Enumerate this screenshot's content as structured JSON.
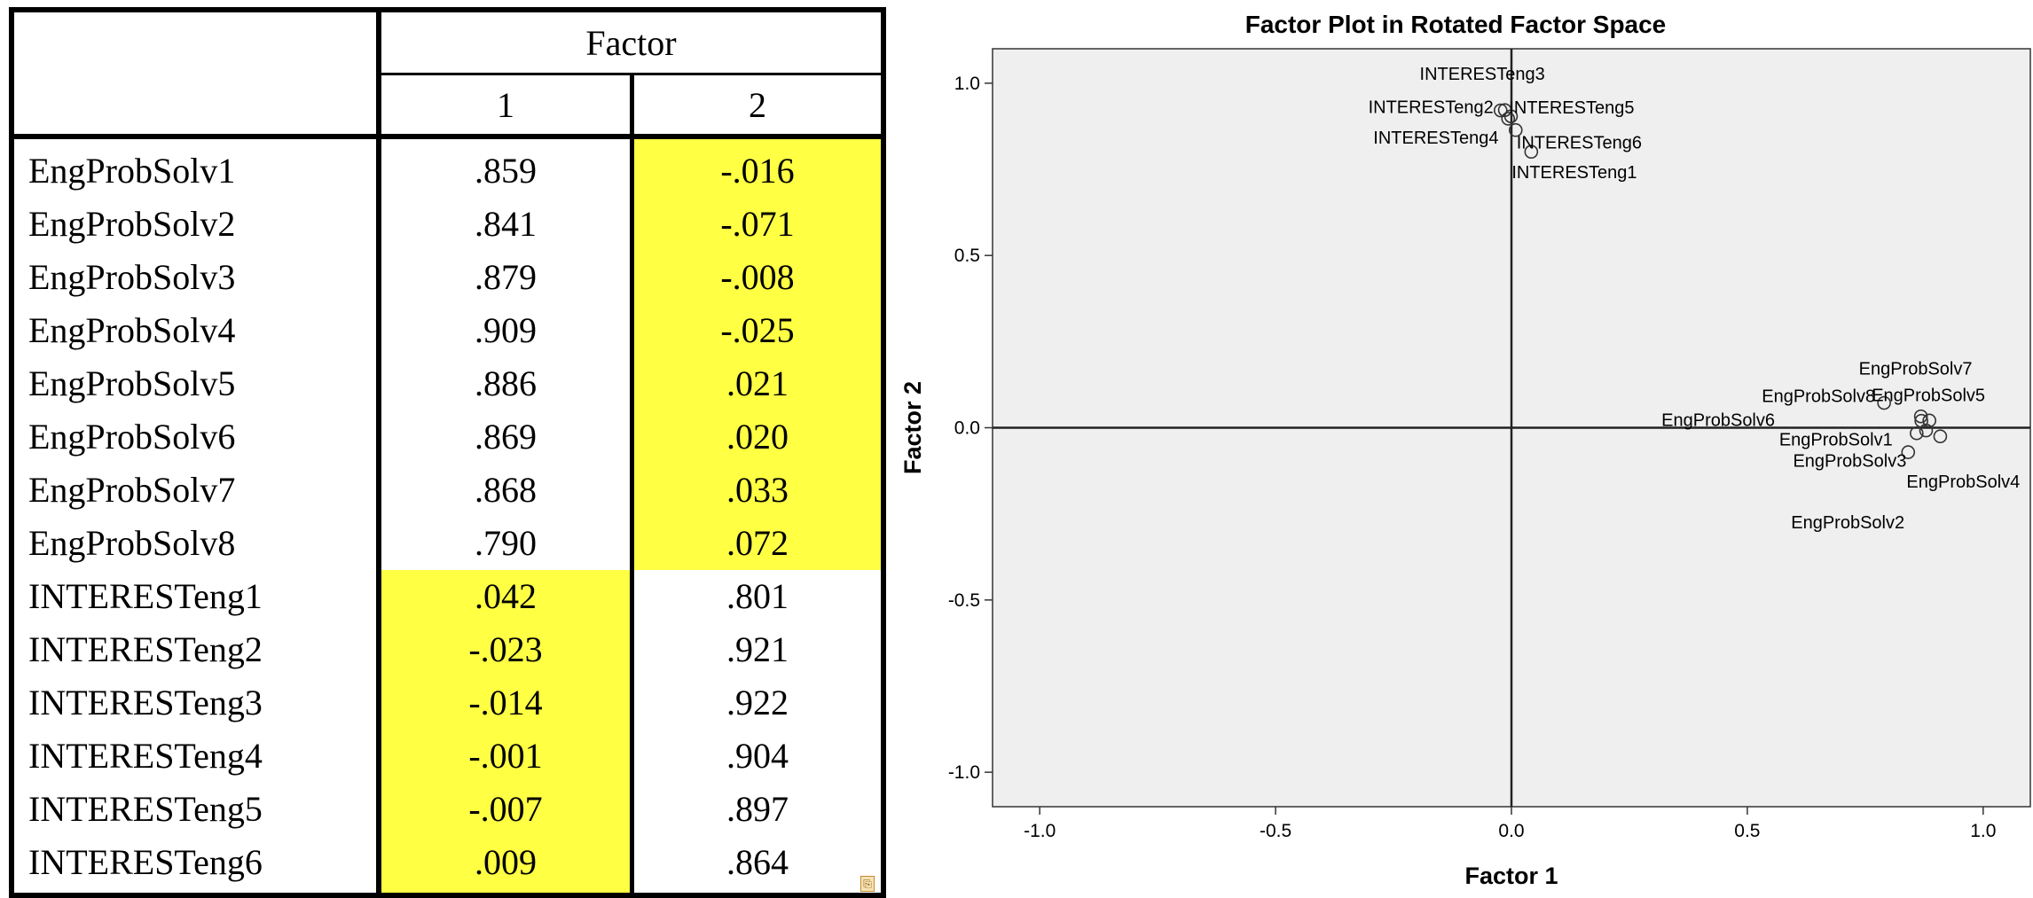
{
  "table": {
    "header": "Factor",
    "columns": [
      "1",
      "2"
    ],
    "rows": [
      {
        "label": "EngProbSolv1",
        "v1": ".859",
        "v2": "-.016"
      },
      {
        "label": "EngProbSolv2",
        "v1": ".841",
        "v2": "-.071"
      },
      {
        "label": "EngProbSolv3",
        "v1": ".879",
        "v2": "-.008"
      },
      {
        "label": "EngProbSolv4",
        "v1": ".909",
        "v2": "-.025"
      },
      {
        "label": "EngProbSolv5",
        "v1": ".886",
        "v2": ".021"
      },
      {
        "label": "EngProbSolv6",
        "v1": ".869",
        "v2": ".020"
      },
      {
        "label": "EngProbSolv7",
        "v1": ".868",
        "v2": ".033"
      },
      {
        "label": "EngProbSolv8",
        "v1": ".790",
        "v2": ".072"
      },
      {
        "label": "INTERESTeng1",
        "v1": ".042",
        "v2": ".801"
      },
      {
        "label": "INTERESTeng2",
        "v1": "-.023",
        "v2": ".921"
      },
      {
        "label": "INTERESTeng3",
        "v1": "-.014",
        "v2": ".922"
      },
      {
        "label": "INTERESTeng4",
        "v1": "-.001",
        "v2": ".904"
      },
      {
        "label": "INTERESTeng5",
        "v1": "-.007",
        "v2": ".897"
      },
      {
        "label": "INTERESTeng6",
        "v1": ".009",
        "v2": ".864"
      }
    ],
    "highlight_color": "#ffff44",
    "highlight": {
      "v2_rows": [
        0,
        1,
        2,
        3,
        4,
        5,
        6,
        7
      ],
      "v1_rows": [
        8,
        9,
        10,
        11,
        12,
        13
      ]
    }
  },
  "chart_data": {
    "type": "scatter",
    "title": "Factor Plot in Rotated Factor Space",
    "xlabel": "Factor 1",
    "ylabel": "Factor 2",
    "xlim": [
      -1.1,
      1.1
    ],
    "ylim": [
      -1.1,
      1.1
    ],
    "xticks": [
      -1.0,
      -0.5,
      0.0,
      0.5,
      1.0
    ],
    "yticks": [
      -1.0,
      -0.5,
      0.0,
      0.5,
      1.0
    ],
    "xtick_labels": [
      "-1.0",
      "-0.5",
      "0.0",
      "0.5",
      "1.0"
    ],
    "ytick_labels": [
      "-1.0",
      "-0.5",
      "0.0",
      "0.5",
      "1.0"
    ],
    "grid": false,
    "reference_lines": {
      "x": 0.0,
      "y": 0.0
    },
    "plot_background": "#efefef",
    "points": [
      {
        "label": "EngProbSolv1",
        "x": 0.859,
        "y": -0.016
      },
      {
        "label": "EngProbSolv2",
        "x": 0.841,
        "y": -0.071
      },
      {
        "label": "EngProbSolv3",
        "x": 0.879,
        "y": -0.008
      },
      {
        "label": "EngProbSolv4",
        "x": 0.909,
        "y": -0.025
      },
      {
        "label": "EngProbSolv5",
        "x": 0.886,
        "y": 0.021
      },
      {
        "label": "EngProbSolv6",
        "x": 0.869,
        "y": 0.02
      },
      {
        "label": "EngProbSolv7",
        "x": 0.868,
        "y": 0.033
      },
      {
        "label": "EngProbSolv8",
        "x": 0.79,
        "y": 0.072
      },
      {
        "label": "INTERESTeng1",
        "x": 0.042,
        "y": 0.801
      },
      {
        "label": "INTERESTeng2",
        "x": -0.023,
        "y": 0.921
      },
      {
        "label": "INTERESTeng3",
        "x": -0.014,
        "y": 0.922
      },
      {
        "label": "INTERESTeng4",
        "x": -0.001,
        "y": 0.904
      },
      {
        "label": "INTERESTeng5",
        "x": -0.007,
        "y": 0.897
      },
      {
        "label": "INTERESTeng6",
        "x": 0.009,
        "y": 0.864
      }
    ]
  }
}
